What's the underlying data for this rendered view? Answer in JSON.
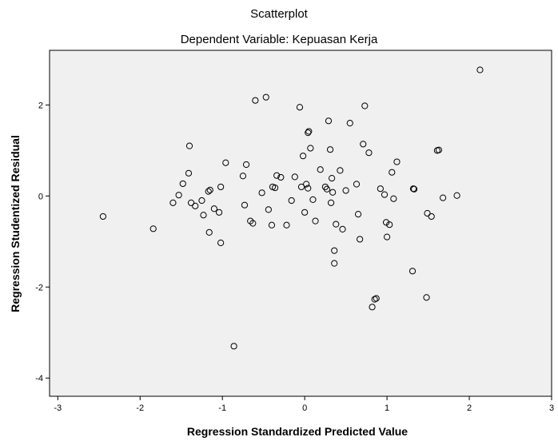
{
  "colors": {
    "plot_background": "#f0f0f0",
    "marker_stroke": "#000000",
    "frame": "#000000"
  },
  "chart_data": {
    "type": "scatter",
    "title": "Scatterplot",
    "subtitle": "Dependent Variable: Kepuasan Kerja",
    "xlabel": "Regression Standardized Predicted Value",
    "ylabel": "Regression Studentized Residual",
    "xlim": [
      -3.1,
      3.0
    ],
    "ylim": [
      -4.4,
      3.2
    ],
    "xticks": [
      -3,
      -2,
      -1,
      0,
      1,
      2,
      3
    ],
    "yticks": [
      -4,
      -2,
      0,
      2
    ],
    "grid": false,
    "marker": "hollow-circle",
    "points": [
      [
        -2.45,
        -0.45
      ],
      [
        -1.84,
        -0.72
      ],
      [
        -1.6,
        -0.15
      ],
      [
        -1.53,
        0.02
      ],
      [
        -1.48,
        0.27
      ],
      [
        -1.41,
        0.5
      ],
      [
        -1.4,
        1.1
      ],
      [
        -1.38,
        -0.15
      ],
      [
        -1.33,
        -0.22
      ],
      [
        -1.25,
        -0.1
      ],
      [
        -1.23,
        -0.42
      ],
      [
        -1.17,
        0.1
      ],
      [
        -1.15,
        0.13
      ],
      [
        -1.16,
        -0.8
      ],
      [
        -1.1,
        -0.28
      ],
      [
        -1.04,
        -0.36
      ],
      [
        -1.02,
        0.2
      ],
      [
        -1.02,
        -1.03
      ],
      [
        -0.96,
        0.73
      ],
      [
        -0.75,
        0.44
      ],
      [
        -0.73,
        -0.2
      ],
      [
        -0.71,
        0.69
      ],
      [
        -0.66,
        -0.55
      ],
      [
        -0.63,
        -0.6
      ],
      [
        -0.6,
        2.1
      ],
      [
        -0.52,
        0.07
      ],
      [
        -0.47,
        2.17
      ],
      [
        -0.44,
        -0.3
      ],
      [
        -0.4,
        -0.64
      ],
      [
        -0.39,
        0.2
      ],
      [
        -0.36,
        0.18
      ],
      [
        -0.34,
        0.45
      ],
      [
        -0.29,
        0.41
      ],
      [
        -0.22,
        -0.64
      ],
      [
        -0.16,
        -0.1
      ],
      [
        -0.12,
        0.42
      ],
      [
        -0.06,
        1.95
      ],
      [
        -0.04,
        0.2
      ],
      [
        -0.02,
        0.88
      ],
      [
        0.0,
        -0.36
      ],
      [
        0.02,
        0.26
      ],
      [
        0.04,
        0.17
      ],
      [
        0.04,
        1.39
      ],
      [
        0.05,
        1.42
      ],
      [
        0.07,
        1.05
      ],
      [
        0.1,
        -0.08
      ],
      [
        0.13,
        -0.55
      ],
      [
        0.19,
        0.58
      ],
      [
        0.25,
        0.2
      ],
      [
        0.27,
        0.15
      ],
      [
        0.29,
        1.65
      ],
      [
        0.31,
        1.02
      ],
      [
        0.32,
        -0.15
      ],
      [
        0.33,
        0.39
      ],
      [
        0.34,
        0.08
      ],
      [
        0.36,
        -1.2
      ],
      [
        0.36,
        -1.48
      ],
      [
        0.38,
        -0.62
      ],
      [
        0.43,
        0.56
      ],
      [
        0.46,
        -0.73
      ],
      [
        0.5,
        0.12
      ],
      [
        0.55,
        1.6
      ],
      [
        0.63,
        0.26
      ],
      [
        0.65,
        -0.4
      ],
      [
        0.67,
        -0.95
      ],
      [
        0.71,
        1.14
      ],
      [
        0.73,
        1.98
      ],
      [
        0.78,
        0.95
      ],
      [
        0.82,
        -2.44
      ],
      [
        0.85,
        -2.27
      ],
      [
        0.87,
        -2.25
      ],
      [
        0.92,
        0.16
      ],
      [
        0.97,
        0.03
      ],
      [
        0.99,
        -0.58
      ],
      [
        1.0,
        -0.9
      ],
      [
        1.03,
        -0.63
      ],
      [
        1.06,
        0.52
      ],
      [
        1.08,
        -0.06
      ],
      [
        1.12,
        0.75
      ],
      [
        1.32,
        0.16
      ],
      [
        1.33,
        0.15
      ],
      [
        1.31,
        -1.65
      ],
      [
        1.48,
        -2.23
      ],
      [
        1.49,
        -0.38
      ],
      [
        1.54,
        -0.45
      ],
      [
        1.61,
        1.0
      ],
      [
        1.63,
        1.01
      ],
      [
        1.68,
        -0.04
      ],
      [
        1.85,
        0.01
      ],
      [
        2.13,
        2.77
      ],
      [
        -0.86,
        -3.3
      ]
    ]
  }
}
